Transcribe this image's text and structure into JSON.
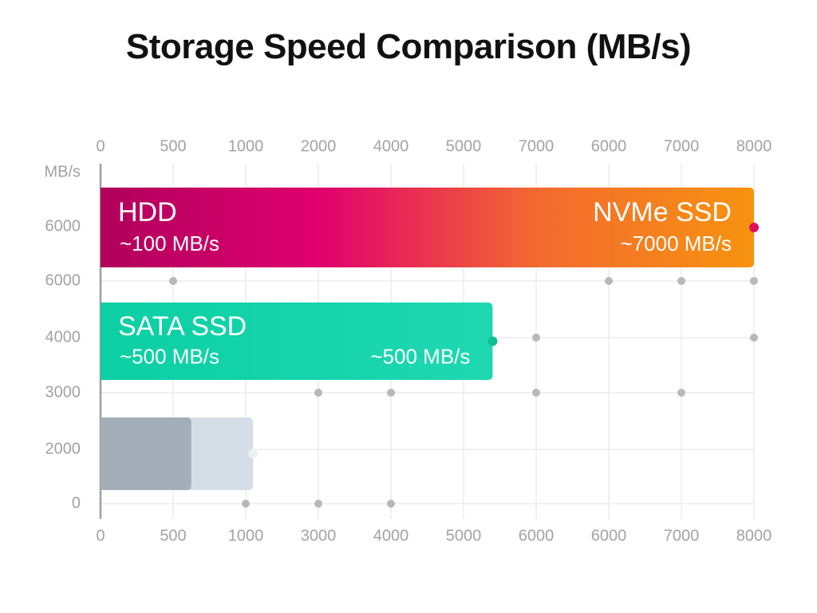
{
  "chart_data": {
    "type": "bar",
    "title": "Storage Speed Comparison (MB/s)",
    "y_unit_label": "MB/s",
    "x_tick_labels_top": [
      "0",
      "500",
      "1000",
      "2000",
      "4000",
      "5000",
      "7000",
      "6000",
      "7000",
      "8000"
    ],
    "x_tick_labels_bottom": [
      "0",
      "500",
      "1000",
      "3000",
      "4000",
      "5000",
      "6000",
      "6000",
      "7000",
      "8000"
    ],
    "y_tick_labels": [
      "6000",
      "6000",
      "4000",
      "3000",
      "2000",
      "0"
    ],
    "grid": true,
    "bars": [
      {
        "name": "HDD",
        "value_text": "~100 MB/s",
        "end_name": "NVMe SSD",
        "end_value_text": "~7000 MB/s",
        "tick_end_index": 9,
        "colors": [
          "#b0005c",
          "#e0006e",
          "#f36a30",
          "#f7930f"
        ],
        "marker_color": "#e0105a"
      },
      {
        "name": "SATA SSD",
        "value_text": "~500 MB/s",
        "end_value_text": "~500 MB/s",
        "tick_end_index": 5.4,
        "colors": [
          "#0ccfa3",
          "#1fd8b2"
        ],
        "marker_color": "#0fbf8f"
      },
      {
        "name": "",
        "value_text": "",
        "tick_end_index": 2.1,
        "inner_tick_end_index": 1.25,
        "colors": [
          "#d5dee6"
        ],
        "inner_color": "#a3aeb8",
        "marker_color": "#eef1f4"
      }
    ],
    "grid_dots": [
      {
        "row": 1,
        "cols": [
          1,
          7,
          8,
          9
        ]
      },
      {
        "row": 2,
        "cols": [
          6,
          9
        ]
      },
      {
        "row": 3,
        "cols": [
          3,
          4,
          6,
          8
        ]
      },
      {
        "row": 5,
        "cols": [
          2,
          3,
          4
        ]
      }
    ]
  }
}
